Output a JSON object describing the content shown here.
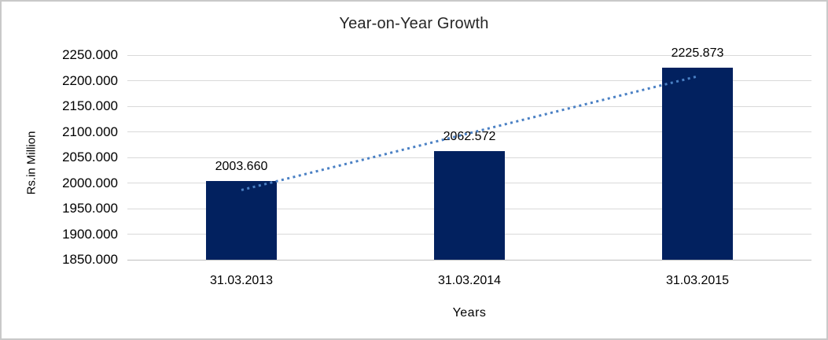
{
  "chart_data": {
    "type": "bar",
    "title": "Year-on-Year Growth",
    "xlabel": "Years",
    "ylabel": "Rs.in Million",
    "categories": [
      "31.03.2013",
      "31.03.2014",
      "31.03.2015"
    ],
    "values": [
      2003.66,
      2062.572,
      2225.873
    ],
    "data_labels": [
      "2003.660",
      "2062.572",
      "2225.873"
    ],
    "ylim": [
      1850,
      2250
    ],
    "ytick_step": 50,
    "ytick_labels": [
      "1850.000",
      "1900.000",
      "1950.000",
      "2000.000",
      "2050.000",
      "2100.000",
      "2150.000",
      "2200.000",
      "2250.000"
    ],
    "grid": true,
    "legend": "none",
    "bar_color": "#02215f",
    "gridline_color": "#d9d9d9",
    "axis_line_color": "#bfbfbf",
    "text_color": "#000000",
    "title_color": "#262626",
    "frame_border_color": "#c9c9c9",
    "background": "#ffffff",
    "trendline": {
      "type": "linear",
      "style": "dotted",
      "color": "#4a80c4"
    }
  }
}
